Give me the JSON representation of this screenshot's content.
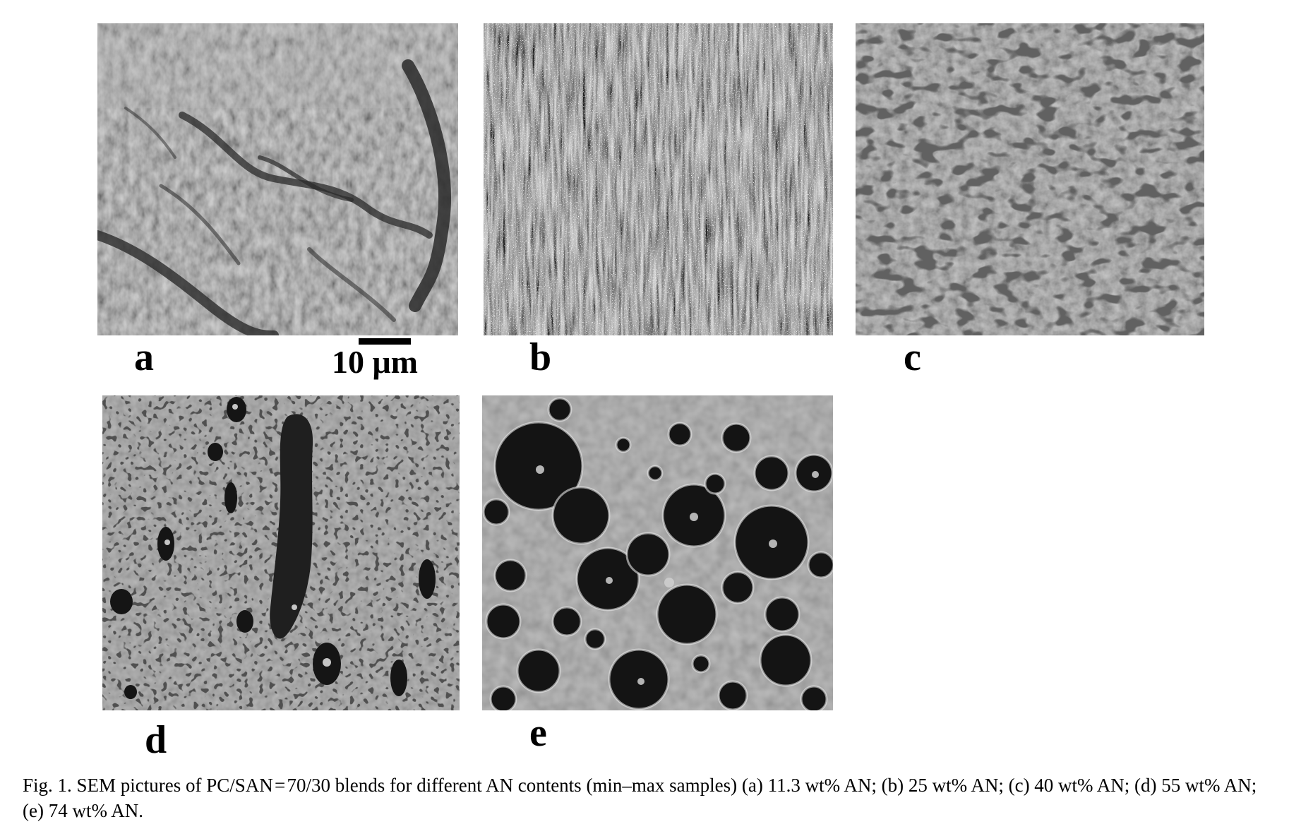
{
  "figure": {
    "panels": [
      {
        "label": "a"
      },
      {
        "label": "b"
      },
      {
        "label": "c"
      },
      {
        "label": "d"
      },
      {
        "label": "e"
      }
    ],
    "scale_bar": {
      "text": "10 μm"
    },
    "caption": "Fig. 1. SEM pictures of PC/SAN = 70/30 blends for different AN contents (min–max samples) (a) 11.3 wt% AN; (b) 25 wt% AN; (c) 40 wt% AN; (d) 55 wt% AN; (e) 74 wt% AN."
  }
}
